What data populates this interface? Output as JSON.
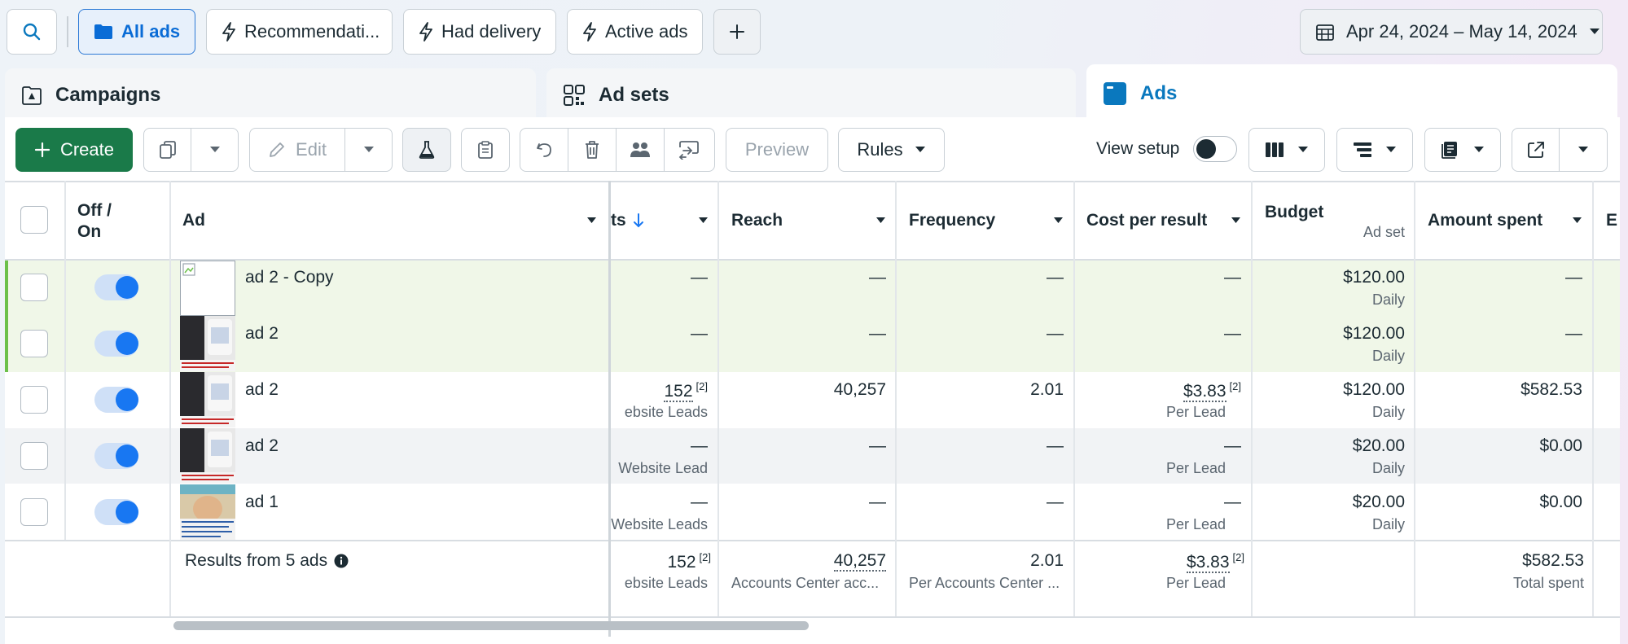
{
  "filters": {
    "all_ads": "All ads",
    "recommendations": "Recommendati...",
    "had_delivery": "Had delivery",
    "active_ads": "Active ads"
  },
  "date_range": "Apr 24, 2024 – May 14, 2024",
  "levels": {
    "campaigns": "Campaigns",
    "ad_sets": "Ad sets",
    "ads": "Ads"
  },
  "toolbar": {
    "create": "Create",
    "edit": "Edit",
    "preview": "Preview",
    "rules": "Rules",
    "view_setup": "View setup"
  },
  "columns": {
    "off_on_1": "Off /",
    "off_on_2": "On",
    "ad": "Ad",
    "results": "ts",
    "reach": "Reach",
    "frequency": "Frequency",
    "cost_per_result": "Cost per result",
    "budget": "Budget",
    "budget_sub": "Ad set",
    "amount_spent": "Amount spent",
    "next": "E"
  },
  "rows": [
    {
      "name": "ad 2 - Copy",
      "results": "—",
      "results_sub": "",
      "reach": "—",
      "frequency": "—",
      "cost": "—",
      "cost_sub": "",
      "budget": "$120.00",
      "budget_sub": "Daily",
      "spent": "—",
      "on": true
    },
    {
      "name": "ad 2",
      "results": "—",
      "results_sub": "",
      "reach": "—",
      "frequency": "—",
      "cost": "—",
      "cost_sub": "",
      "budget": "$120.00",
      "budget_sub": "Daily",
      "spent": "—",
      "on": true
    },
    {
      "name": "ad 2",
      "results": "152",
      "results_sup": "[2]",
      "results_sub": "ebsite Leads",
      "reach": "40,257",
      "frequency": "2.01",
      "cost": "$3.83",
      "cost_sup": "[2]",
      "cost_sub": "Per Lead",
      "budget": "$120.00",
      "budget_sub": "Daily",
      "spent": "$582.53",
      "on": true
    },
    {
      "name": "ad 2",
      "results": "—",
      "results_sub": "Website Lead",
      "reach": "—",
      "frequency": "—",
      "cost": "—",
      "cost_sub": "Per Lead",
      "budget": "$20.00",
      "budget_sub": "Daily",
      "spent": "$0.00",
      "on": true
    },
    {
      "name": "ad 1",
      "results": "—",
      "results_sub": "Website Leads",
      "reach": "—",
      "frequency": "—",
      "cost": "—",
      "cost_sub": "Per Lead",
      "budget": "$20.00",
      "budget_sub": "Daily",
      "spent": "$0.00",
      "on": true
    }
  ],
  "summary": {
    "label": "Results from 5 ads",
    "results": "152",
    "results_sup": "[2]",
    "results_sub": "ebsite Leads",
    "reach": "40,257",
    "reach_sub": "Accounts Center acc...",
    "frequency": "2.01",
    "frequency_sub": "Per Accounts Center ...",
    "cost": "$3.83",
    "cost_sup": "[2]",
    "cost_sub": "Per Lead",
    "spent": "$582.53",
    "spent_sub": "Total spent"
  },
  "colors": {
    "accent": "#0a78be",
    "create_green": "#1a7a49",
    "toggle_on": "#1877f2",
    "new_row_bg": "#f0f7e8"
  },
  "icons": [
    "search-icon",
    "folder-icon",
    "lightning-icon",
    "plus-icon",
    "calendar-icon",
    "chevron-down-icon",
    "campaign-icon",
    "ad-sets-icon",
    "ads-icon",
    "duplicate-icon",
    "pencil-icon",
    "flask-icon",
    "clipboard-icon",
    "undo-icon",
    "trash-icon",
    "people-icon",
    "switch-icon",
    "columns-icon",
    "breakdown-icon",
    "reports-icon",
    "export-icon",
    "sort-down-icon",
    "info-icon"
  ]
}
